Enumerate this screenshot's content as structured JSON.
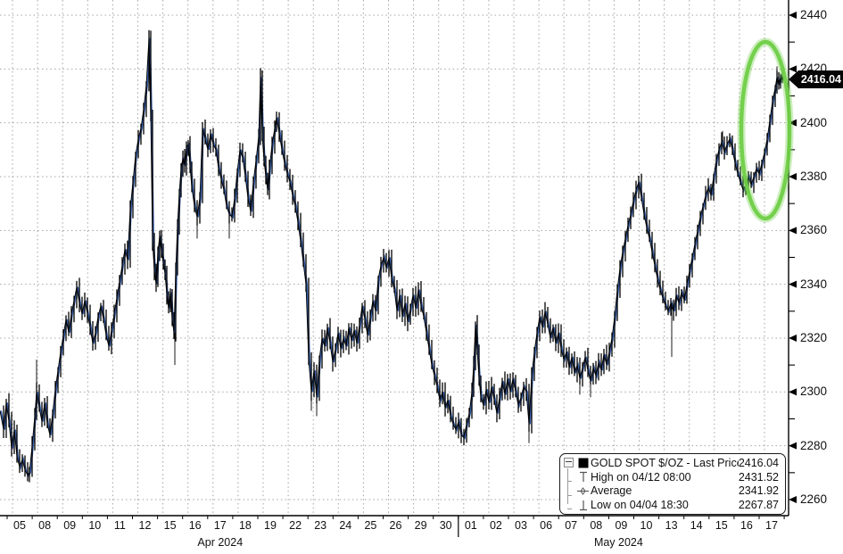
{
  "y_axis": {
    "min": 2260,
    "max": 2440,
    "major_step": 20,
    "minor_step": 10,
    "labels": [
      "2440",
      "2420",
      "2400",
      "2380",
      "2360",
      "2340",
      "2320",
      "2300",
      "2280",
      "2260"
    ]
  },
  "x_axis": {
    "date_labels": [
      "05",
      "08",
      "09",
      "10",
      "11",
      "12",
      "15",
      "16",
      "17",
      "18",
      "19",
      "22",
      "23",
      "24",
      "25",
      "26",
      "29",
      "30",
      "01",
      "02",
      "03",
      "06",
      "07",
      "08",
      "09",
      "10",
      "13",
      "14",
      "15",
      "16",
      "17"
    ],
    "months": [
      {
        "label": "Apr 2024",
        "center_index": 8
      },
      {
        "label": "May 2024",
        "center_index": 24
      }
    ],
    "month_boundary_tick_index": 18
  },
  "last_price_tag": {
    "value": "2416.04"
  },
  "legend": {
    "rows": [
      {
        "marker": "series-swatch",
        "label": "GOLD SPOT $/OZ - Last Price",
        "value": "2416.04"
      },
      {
        "marker": "high",
        "label": "High on 04/12 08:00",
        "value": "2431.52"
      },
      {
        "marker": "average",
        "label": "Average",
        "value": "2341.92"
      },
      {
        "marker": "low",
        "label": "Low on 04/04 18:30",
        "value": "2267.87"
      }
    ]
  },
  "annotation_ellipse": {
    "color": "#6fce47"
  },
  "colors": {
    "bar": "#000000",
    "line": "#3b63ae",
    "grid": "#a3a3a3",
    "axis": "#000000",
    "text": "#111111",
    "tag_bg": "#050505",
    "tag_fg": "#ffffff"
  },
  "chart_data": {
    "type": "line",
    "title": "GOLD SPOT $/OZ - Last Price (intraday)",
    "x_domain": [
      "2024-04-04 18:00",
      "2024-05-17"
    ],
    "ylim": [
      2260,
      2440
    ],
    "last_price": 2416.04,
    "high": {
      "time": "04/12 08:00",
      "value": 2431.52
    },
    "average": 2341.92,
    "low": {
      "time": "04/04 18:30",
      "value": 2267.87
    },
    "x_unit": "plot-pixel 0..884 spanning x_domain",
    "points": [
      [
        0,
        2293
      ],
      [
        4,
        2286
      ],
      [
        7,
        2296
      ],
      [
        10,
        2289
      ],
      [
        13,
        2279
      ],
      [
        16,
        2286
      ],
      [
        19,
        2276
      ],
      [
        22,
        2272
      ],
      [
        25,
        2275
      ],
      [
        28,
        2271
      ],
      [
        31,
        2269
      ],
      [
        33,
        2270
      ],
      [
        36,
        2280
      ],
      [
        39,
        2291
      ],
      [
        41,
        2300
      ],
      [
        44,
        2294
      ],
      [
        47,
        2289
      ],
      [
        50,
        2296
      ],
      [
        53,
        2288
      ],
      [
        56,
        2284
      ],
      [
        59,
        2292
      ],
      [
        62,
        2301
      ],
      [
        65,
        2308
      ],
      [
        68,
        2315
      ],
      [
        71,
        2321
      ],
      [
        74,
        2327
      ],
      [
        77,
        2322
      ],
      [
        80,
        2329
      ],
      [
        83,
        2334
      ],
      [
        86,
        2339
      ],
      [
        89,
        2333
      ],
      [
        92,
        2329
      ],
      [
        95,
        2334
      ],
      [
        98,
        2329
      ],
      [
        101,
        2324
      ],
      [
        104,
        2318
      ],
      [
        107,
        2322
      ],
      [
        110,
        2328
      ],
      [
        113,
        2332
      ],
      [
        116,
        2327
      ],
      [
        119,
        2321
      ],
      [
        122,
        2317
      ],
      [
        125,
        2323
      ],
      [
        128,
        2329
      ],
      [
        131,
        2335
      ],
      [
        134,
        2341
      ],
      [
        137,
        2347
      ],
      [
        140,
        2353
      ],
      [
        143,
        2349
      ],
      [
        146,
        2368
      ],
      [
        149,
        2378
      ],
      [
        152,
        2388
      ],
      [
        155,
        2394
      ],
      [
        158,
        2398
      ],
      [
        161,
        2405
      ],
      [
        164,
        2414
      ],
      [
        167,
        2431.5
      ],
      [
        169,
        2402
      ],
      [
        171,
        2356
      ],
      [
        173,
        2345
      ],
      [
        175,
        2340
      ],
      [
        177,
        2352
      ],
      [
        179,
        2358
      ],
      [
        181,
        2352
      ],
      [
        183,
        2348
      ],
      [
        185,
        2344
      ],
      [
        187,
        2336
      ],
      [
        189,
        2331
      ],
      [
        191,
        2337
      ],
      [
        193,
        2327
      ],
      [
        195,
        2322
      ],
      [
        197,
        2345
      ],
      [
        199,
        2362
      ],
      [
        201,
        2374
      ],
      [
        203,
        2383
      ],
      [
        205,
        2387
      ],
      [
        207,
        2384
      ],
      [
        209,
        2391
      ],
      [
        211,
        2392
      ],
      [
        213,
        2384
      ],
      [
        215,
        2376
      ],
      [
        218,
        2369
      ],
      [
        221,
        2365
      ],
      [
        224,
        2372
      ],
      [
        227,
        2398
      ],
      [
        230,
        2394
      ],
      [
        233,
        2390
      ],
      [
        236,
        2396
      ],
      [
        239,
        2392
      ],
      [
        242,
        2390
      ],
      [
        245,
        2383
      ],
      [
        248,
        2379
      ],
      [
        251,
        2375
      ],
      [
        254,
        2369
      ],
      [
        257,
        2366
      ],
      [
        260,
        2365
      ],
      [
        263,
        2372
      ],
      [
        266,
        2382
      ],
      [
        269,
        2390
      ],
      [
        272,
        2387
      ],
      [
        275,
        2380
      ],
      [
        278,
        2372
      ],
      [
        281,
        2367
      ],
      [
        284,
        2378
      ],
      [
        287,
        2386
      ],
      [
        290,
        2395
      ],
      [
        292,
        2417
      ],
      [
        294,
        2395
      ],
      [
        296,
        2386
      ],
      [
        298,
        2380
      ],
      [
        300,
        2375
      ],
      [
        302,
        2383
      ],
      [
        305,
        2392
      ],
      [
        308,
        2398
      ],
      [
        310,
        2402
      ],
      [
        313,
        2396
      ],
      [
        316,
        2390
      ],
      [
        319,
        2385
      ],
      [
        322,
        2381
      ],
      [
        325,
        2378
      ],
      [
        328,
        2373
      ],
      [
        331,
        2369
      ],
      [
        334,
        2363
      ],
      [
        337,
        2356
      ],
      [
        340,
        2348
      ],
      [
        343,
        2340
      ],
      [
        346,
        2312
      ],
      [
        349,
        2300
      ],
      [
        352,
        2308
      ],
      [
        355,
        2298
      ],
      [
        358,
        2312
      ],
      [
        361,
        2320
      ],
      [
        364,
        2317
      ],
      [
        367,
        2324
      ],
      [
        370,
        2318
      ],
      [
        373,
        2311
      ],
      [
        376,
        2316
      ],
      [
        379,
        2322
      ],
      [
        382,
        2316
      ],
      [
        385,
        2320
      ],
      [
        388,
        2317
      ],
      [
        391,
        2324
      ],
      [
        394,
        2319
      ],
      [
        397,
        2323
      ],
      [
        400,
        2318
      ],
      [
        403,
        2325
      ],
      [
        406,
        2332
      ],
      [
        409,
        2327
      ],
      [
        412,
        2321
      ],
      [
        415,
        2328
      ],
      [
        418,
        2334
      ],
      [
        421,
        2330
      ],
      [
        424,
        2342
      ],
      [
        427,
        2347
      ],
      [
        430,
        2350
      ],
      [
        433,
        2346
      ],
      [
        436,
        2350
      ],
      [
        439,
        2342
      ],
      [
        442,
        2338
      ],
      [
        445,
        2330
      ],
      [
        448,
        2336
      ],
      [
        451,
        2328
      ],
      [
        454,
        2333
      ],
      [
        457,
        2326
      ],
      [
        460,
        2331
      ],
      [
        463,
        2336
      ],
      [
        466,
        2331
      ],
      [
        469,
        2338
      ],
      [
        472,
        2332
      ],
      [
        475,
        2328
      ],
      [
        478,
        2322
      ],
      [
        481,
        2316
      ],
      [
        484,
        2310
      ],
      [
        487,
        2306
      ],
      [
        490,
        2302
      ],
      [
        493,
        2297
      ],
      [
        496,
        2300
      ],
      [
        499,
        2294
      ],
      [
        502,
        2297
      ],
      [
        505,
        2291
      ],
      [
        508,
        2288
      ],
      [
        511,
        2286
      ],
      [
        514,
        2289
      ],
      [
        517,
        2284
      ],
      [
        520,
        2283
      ],
      [
        523,
        2288
      ],
      [
        526,
        2292
      ],
      [
        529,
        2300
      ],
      [
        531,
        2310
      ],
      [
        533,
        2325
      ],
      [
        535,
        2315
      ],
      [
        537,
        2305
      ],
      [
        539,
        2298
      ],
      [
        542,
        2295
      ],
      [
        545,
        2301
      ],
      [
        548,
        2296
      ],
      [
        551,
        2302
      ],
      [
        554,
        2297
      ],
      [
        557,
        2292
      ],
      [
        560,
        2298
      ],
      [
        563,
        2304
      ],
      [
        566,
        2299
      ],
      [
        569,
        2305
      ],
      [
        572,
        2300
      ],
      [
        575,
        2305
      ],
      [
        578,
        2300
      ],
      [
        581,
        2295
      ],
      [
        584,
        2298
      ],
      [
        587,
        2302
      ],
      [
        590,
        2300
      ],
      [
        593,
        2288
      ],
      [
        596,
        2306
      ],
      [
        599,
        2315
      ],
      [
        602,
        2322
      ],
      [
        605,
        2328
      ],
      [
        608,
        2324
      ],
      [
        611,
        2330
      ],
      [
        614,
        2325
      ],
      [
        617,
        2320
      ],
      [
        620,
        2324
      ],
      [
        623,
        2318
      ],
      [
        626,
        2322
      ],
      [
        629,
        2316
      ],
      [
        632,
        2312
      ],
      [
        635,
        2315
      ],
      [
        638,
        2309
      ],
      [
        641,
        2313
      ],
      [
        644,
        2307
      ],
      [
        647,
        2310
      ],
      [
        650,
        2305
      ],
      [
        653,
        2309
      ],
      [
        656,
        2313
      ],
      [
        659,
        2308
      ],
      [
        662,
        2304
      ],
      [
        665,
        2309
      ],
      [
        668,
        2306
      ],
      [
        671,
        2311
      ],
      [
        674,
        2308
      ],
      [
        677,
        2314
      ],
      [
        680,
        2310
      ],
      [
        683,
        2315
      ],
      [
        686,
        2320
      ],
      [
        689,
        2328
      ],
      [
        692,
        2338
      ],
      [
        695,
        2346
      ],
      [
        698,
        2352
      ],
      [
        701,
        2357
      ],
      [
        704,
        2362
      ],
      [
        707,
        2366
      ],
      [
        710,
        2371
      ],
      [
        713,
        2375
      ],
      [
        716,
        2378
      ],
      [
        719,
        2372
      ],
      [
        722,
        2366
      ],
      [
        725,
        2361
      ],
      [
        728,
        2357
      ],
      [
        731,
        2352
      ],
      [
        734,
        2347
      ],
      [
        737,
        2342
      ],
      [
        740,
        2338
      ],
      [
        743,
        2335
      ],
      [
        746,
        2332
      ],
      [
        749,
        2330
      ],
      [
        752,
        2333
      ],
      [
        755,
        2330
      ],
      [
        758,
        2336
      ],
      [
        761,
        2333
      ],
      [
        764,
        2337
      ],
      [
        767,
        2334
      ],
      [
        770,
        2340
      ],
      [
        773,
        2345
      ],
      [
        776,
        2350
      ],
      [
        779,
        2355
      ],
      [
        782,
        2360
      ],
      [
        785,
        2365
      ],
      [
        788,
        2369
      ],
      [
        791,
        2373
      ],
      [
        794,
        2376
      ],
      [
        797,
        2373
      ],
      [
        800,
        2380
      ],
      [
        803,
        2386
      ],
      [
        806,
        2390
      ],
      [
        809,
        2393
      ],
      [
        812,
        2389
      ],
      [
        815,
        2392
      ],
      [
        818,
        2394
      ],
      [
        821,
        2390
      ],
      [
        824,
        2385
      ],
      [
        827,
        2381
      ],
      [
        830,
        2378
      ],
      [
        833,
        2375
      ],
      [
        836,
        2377
      ],
      [
        839,
        2380
      ],
      [
        842,
        2377
      ],
      [
        845,
        2380
      ],
      [
        848,
        2383
      ],
      [
        851,
        2381
      ],
      [
        854,
        2385
      ],
      [
        857,
        2389
      ],
      [
        860,
        2394
      ],
      [
        863,
        2401
      ],
      [
        866,
        2408
      ],
      [
        869,
        2413
      ],
      [
        871,
        2417
      ],
      [
        873,
        2414
      ],
      [
        875,
        2417
      ],
      [
        877,
        2416
      ]
    ],
    "wick_spikes": [
      [
        33,
        2268
      ],
      [
        41,
        2312
      ],
      [
        196,
        2310
      ],
      [
        221,
        2357
      ],
      [
        257,
        2357
      ],
      [
        349,
        2293
      ],
      [
        355,
        2291
      ],
      [
        436,
        2353
      ],
      [
        517,
        2281
      ],
      [
        593,
        2281
      ],
      [
        650,
        2299
      ],
      [
        662,
        2298
      ],
      [
        716,
        2380
      ],
      [
        753,
        2313
      ],
      [
        810,
        2397
      ],
      [
        871,
        2421
      ]
    ]
  }
}
